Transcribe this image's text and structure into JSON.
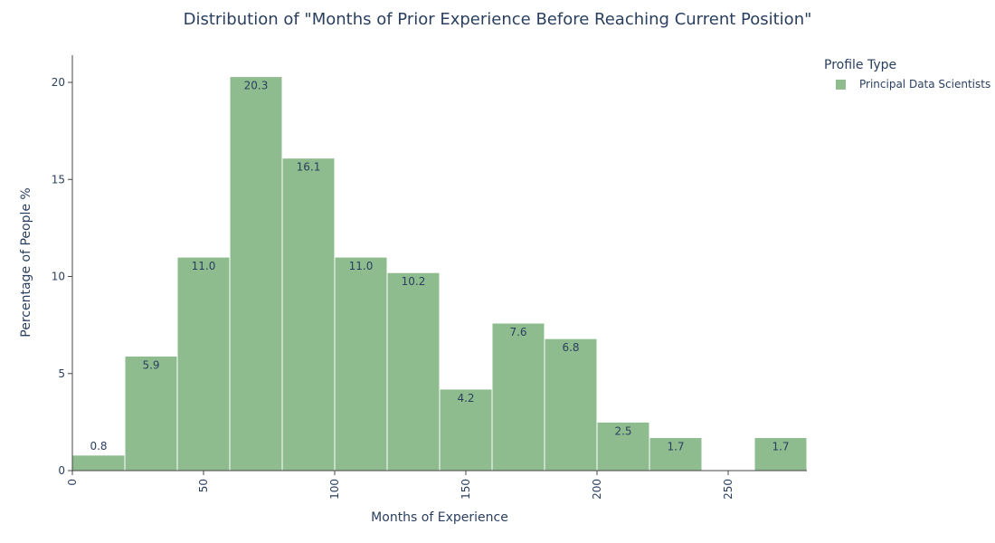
{
  "chart_data": {
    "type": "bar",
    "title": "Distribution of \"Months of Prior Experience Before Reaching Current Position\"",
    "xlabel": "Months of Experience",
    "ylabel": "Percentage of People %",
    "bin_edges": [
      0,
      20,
      40,
      60,
      80,
      100,
      120,
      140,
      160,
      180,
      200,
      220,
      240,
      260,
      280
    ],
    "series": [
      {
        "name": "Principal Data Scientists",
        "color": "#8fbc8f",
        "values": [
          0.8,
          5.9,
          11.0,
          20.3,
          16.1,
          11.0,
          10.2,
          4.2,
          7.6,
          6.8,
          2.5,
          1.7,
          0,
          1.7
        ],
        "labels": [
          "0.8",
          "5.9",
          "11.0",
          "20.3",
          "16.1",
          "11.0",
          "10.2",
          "4.2",
          "7.6",
          "6.8",
          "2.5",
          "1.7",
          "",
          "1.7"
        ]
      }
    ],
    "xlim": [
      0,
      280
    ],
    "ylim": [
      0,
      21.4
    ],
    "xticks": [
      0,
      50,
      100,
      150,
      200,
      250
    ],
    "xtick_labels": [
      "0",
      "50",
      "100",
      "150",
      "200",
      "250"
    ],
    "yticks": [
      0,
      5,
      10,
      15,
      20
    ],
    "ytick_labels": [
      "0",
      "5",
      "10",
      "15",
      "20"
    ],
    "legend_title": "Profile Type",
    "legend_position": "top-right",
    "grid": false
  }
}
